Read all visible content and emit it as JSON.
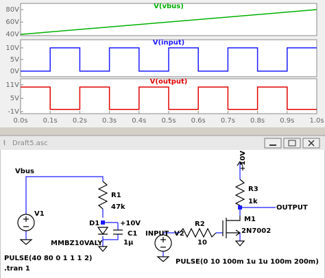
{
  "chart_data": [
    {
      "type": "line",
      "title": "V(vbus)",
      "color": "#00b000",
      "x": [
        0,
        1
      ],
      "values": [
        40,
        80
      ],
      "xlim": [
        0,
        1
      ],
      "ylim": [
        38,
        90
      ],
      "yticks": [
        {
          "value": 80,
          "label": "80V"
        },
        {
          "value": 60,
          "label": "60V"
        },
        {
          "value": 40,
          "label": "40V"
        }
      ]
    },
    {
      "type": "line",
      "title": "V(input)",
      "color": "#1a1aff",
      "x": [
        0,
        0.1,
        0.1,
        0.2,
        0.2,
        0.3,
        0.3,
        0.4,
        0.4,
        0.5,
        0.5,
        0.6,
        0.6,
        0.7,
        0.7,
        0.8,
        0.8,
        0.9,
        0.9,
        1
      ],
      "values": [
        0,
        0,
        10,
        10,
        0,
        0,
        10,
        10,
        0,
        0,
        10,
        10,
        0,
        0,
        10,
        10,
        0,
        0,
        10,
        10
      ],
      "xlim": [
        0,
        1
      ],
      "ylim": [
        -2.4,
        13.5
      ],
      "yticks": [
        {
          "value": 10,
          "label": "10V"
        },
        {
          "value": 5,
          "label": "5V"
        },
        {
          "value": 0,
          "label": "0V"
        }
      ]
    },
    {
      "type": "line",
      "title": "V(output)",
      "color": "#e00000",
      "x": [
        0,
        0.1,
        0.1,
        0.2,
        0.2,
        0.3,
        0.3,
        0.4,
        0.4,
        0.5,
        0.5,
        0.6,
        0.6,
        0.7,
        0.7,
        0.8,
        0.8,
        0.9,
        0.9,
        1
      ],
      "values": [
        10,
        10,
        0,
        0,
        10,
        10,
        0,
        0,
        10,
        10,
        0,
        0,
        10,
        10,
        0,
        0,
        10,
        10,
        0,
        0
      ],
      "xlim": [
        0,
        1
      ],
      "ylim": [
        -1.9,
        13.7
      ],
      "yticks": [
        {
          "value": 11,
          "label": "11V"
        },
        {
          "value": 5,
          "label": "5V"
        },
        {
          "value": -1,
          "label": "-1V"
        }
      ],
      "xticks": [
        {
          "value": 0,
          "label": "0.0s"
        },
        {
          "value": 0.1,
          "label": "0.1s"
        },
        {
          "value": 0.2,
          "label": "0.2s"
        },
        {
          "value": 0.3,
          "label": "0.3s"
        },
        {
          "value": 0.4,
          "label": "0.4s"
        },
        {
          "value": 0.5,
          "label": "0.5s"
        },
        {
          "value": 0.6,
          "label": "0.6s"
        },
        {
          "value": 0.7,
          "label": "0.7s"
        },
        {
          "value": 0.8,
          "label": "0.8s"
        },
        {
          "value": 0.9,
          "label": "0.9s"
        },
        {
          "value": 1,
          "label": "1.0s"
        }
      ]
    }
  ],
  "window": {
    "title": "Draft5.asc"
  },
  "schematic": {
    "labels": [
      "Vbus",
      "V1",
      "R1",
      "47k",
      "D1",
      "+10V",
      "C1",
      "1µ",
      "MMBZ10VALY",
      "PULSE(40 80 0 1 1 1 2)",
      ".tran 1",
      "INPUT",
      "V2",
      "R2",
      "10",
      "+10V",
      "R3",
      "1k",
      "OUTPUT",
      "M1",
      "2N7002",
      "PULSE(0 10 100m 1u 1u 100m 200m)"
    ]
  }
}
